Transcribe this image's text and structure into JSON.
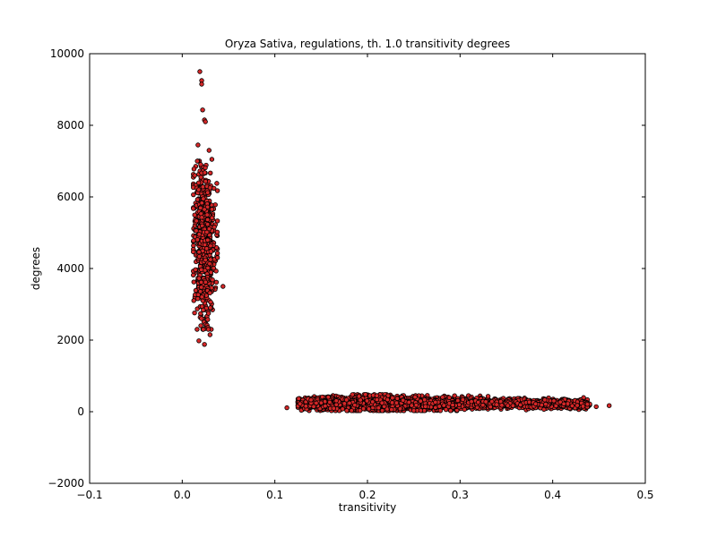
{
  "chart_data": {
    "type": "scatter",
    "title": "Oryza Sativa, regulations, th. 1.0 transitivity degrees",
    "xlabel": "transitivity",
    "ylabel": "degrees",
    "xlim": [
      -0.1,
      0.5
    ],
    "ylim": [
      -2000,
      10000
    ],
    "x_ticks": [
      -0.1,
      0.0,
      0.1,
      0.2,
      0.3,
      0.4,
      0.5
    ],
    "y_ticks": [
      -2000,
      0,
      2000,
      4000,
      6000,
      8000,
      10000
    ],
    "x_tick_labels": [
      "−0.1",
      "0.0",
      "0.1",
      "0.2",
      "0.3",
      "0.4",
      "0.5"
    ],
    "y_tick_labels": [
      "−2000",
      "0",
      "2000",
      "4000",
      "6000",
      "8000",
      "10000"
    ],
    "grid": false,
    "legend": "none",
    "marker_fill": "#d62728",
    "marker_edge": "#000000",
    "clusters": [
      {
        "name": "high-degree cluster",
        "x_range": [
          0.005,
          0.045
        ],
        "x_center": 0.024,
        "y_range": [
          1850,
          9500
        ],
        "y_center": 4700,
        "count": 700
      },
      {
        "name": "low-degree cluster",
        "x_range": [
          0.113,
          0.461
        ],
        "x_center": 0.26,
        "y_range": [
          20,
          470
        ],
        "y_center": 220,
        "count": 2600
      }
    ],
    "outliers": [
      {
        "x": 0.019,
        "y": 9500
      },
      {
        "x": 0.021,
        "y": 9250
      },
      {
        "x": 0.021,
        "y": 9150
      },
      {
        "x": 0.022,
        "y": 8430
      },
      {
        "x": 0.024,
        "y": 8150
      },
      {
        "x": 0.025,
        "y": 8100
      },
      {
        "x": 0.017,
        "y": 7450
      },
      {
        "x": 0.029,
        "y": 7300
      },
      {
        "x": 0.032,
        "y": 7050
      },
      {
        "x": 0.044,
        "y": 3500
      },
      {
        "x": 0.03,
        "y": 2150
      },
      {
        "x": 0.018,
        "y": 1980
      },
      {
        "x": 0.024,
        "y": 1880
      },
      {
        "x": 0.113,
        "y": 110
      },
      {
        "x": 0.461,
        "y": 170
      },
      {
        "x": 0.447,
        "y": 140
      }
    ]
  }
}
